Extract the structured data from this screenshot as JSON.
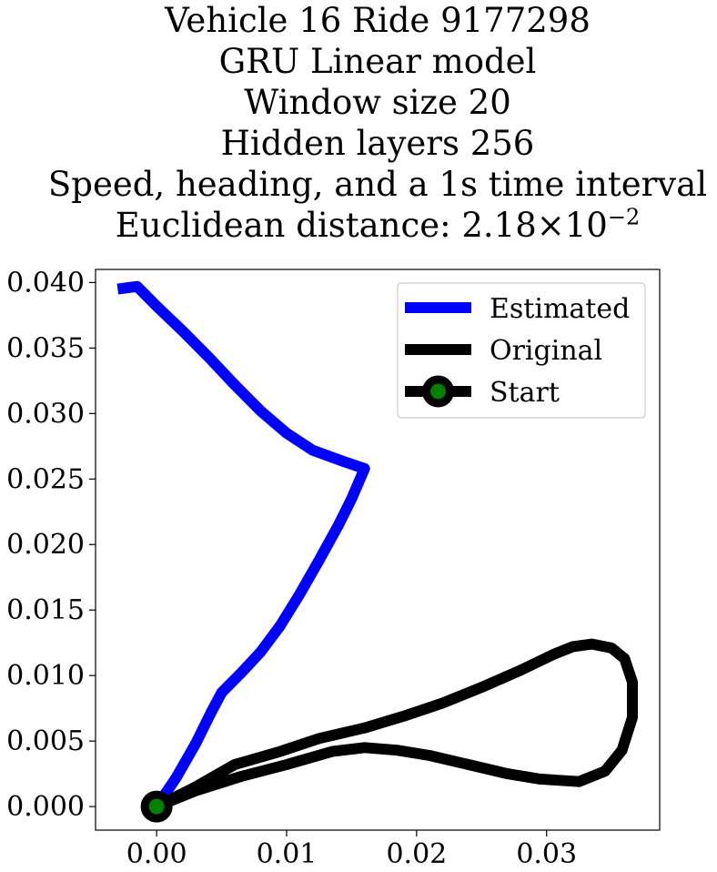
{
  "title_lines": [
    "Vehicle 16 Ride 9177298",
    "GRU Linear model",
    "Window size 20",
    "Hidden layers 256",
    "Speed, heading, and a 1s time interval"
  ],
  "distance_prefix": "Euclidean distance: 2.18×10",
  "distance_exponent": "−2",
  "colors": {
    "estimated": "#0000ff",
    "original": "#000000",
    "start_marker_edge": "#000000",
    "start_marker_face": "#008000"
  },
  "chart_data": {
    "type": "line",
    "title": "Vehicle 16 Ride 9177298 GRU Linear model Window size 20 Hidden layers 256 Speed, heading, and a 1s time interval Euclidean distance: 2.18×10^-2",
    "xlabel": "",
    "ylabel": "",
    "xlim": [
      -0.0047,
      0.0387
    ],
    "ylim": [
      -0.0018,
      0.041
    ],
    "xticks": [
      0.0,
      0.01,
      0.02,
      0.03
    ],
    "xtick_labels": [
      "0.00",
      "0.01",
      "0.02",
      "0.03"
    ],
    "yticks": [
      0.0,
      0.005,
      0.01,
      0.015,
      0.02,
      0.025,
      0.03,
      0.035,
      0.04
    ],
    "ytick_labels": [
      "0.000",
      "0.005",
      "0.010",
      "0.015",
      "0.020",
      "0.025",
      "0.030",
      "0.035",
      "0.040"
    ],
    "grid": false,
    "legend_position": "upper right",
    "series": [
      {
        "name": "Estimated",
        "x": [
          0.0,
          0.0015,
          0.003,
          0.0042,
          0.005,
          0.0065,
          0.008,
          0.0095,
          0.011,
          0.0125,
          0.014,
          0.015,
          0.016,
          0.0145,
          0.012,
          0.01,
          0.008,
          0.006,
          0.004,
          0.002,
          0.0,
          -0.0015,
          -0.003
        ],
        "y": [
          0.0,
          0.0022,
          0.0048,
          0.0072,
          0.0087,
          0.0102,
          0.0118,
          0.0138,
          0.0162,
          0.0188,
          0.0215,
          0.0235,
          0.0258,
          0.0263,
          0.0272,
          0.0285,
          0.0302,
          0.0322,
          0.0343,
          0.0363,
          0.0382,
          0.0397,
          0.0395
        ]
      },
      {
        "name": "Original",
        "x": [
          0.0,
          0.003,
          0.006,
          0.0095,
          0.0125,
          0.016,
          0.019,
          0.022,
          0.025,
          0.028,
          0.0305,
          0.032,
          0.0335,
          0.035,
          0.036,
          0.0366,
          0.0366,
          0.0358,
          0.0345,
          0.0325,
          0.031,
          0.0295,
          0.027,
          0.024,
          0.021,
          0.0185,
          0.016,
          0.0135,
          0.01,
          0.0065,
          0.003,
          0.0
        ],
        "y": [
          0.0,
          0.0015,
          0.0032,
          0.0042,
          0.0052,
          0.006,
          0.0069,
          0.0079,
          0.0091,
          0.0104,
          0.0116,
          0.0122,
          0.0124,
          0.0121,
          0.0113,
          0.0095,
          0.0068,
          0.0043,
          0.0027,
          0.0019,
          0.002,
          0.0021,
          0.0025,
          0.0032,
          0.0039,
          0.0043,
          0.0045,
          0.0042,
          0.0032,
          0.0023,
          0.0012,
          0.0
        ]
      }
    ],
    "start_point": {
      "name": "Start",
      "x": 0.0,
      "y": 0.0
    }
  },
  "legend": [
    {
      "label": "Estimated",
      "kind": "line",
      "color": "#0000ff"
    },
    {
      "label": "Original",
      "kind": "line",
      "color": "#000000"
    },
    {
      "label": "Start",
      "kind": "marker",
      "color": "#000000"
    }
  ]
}
